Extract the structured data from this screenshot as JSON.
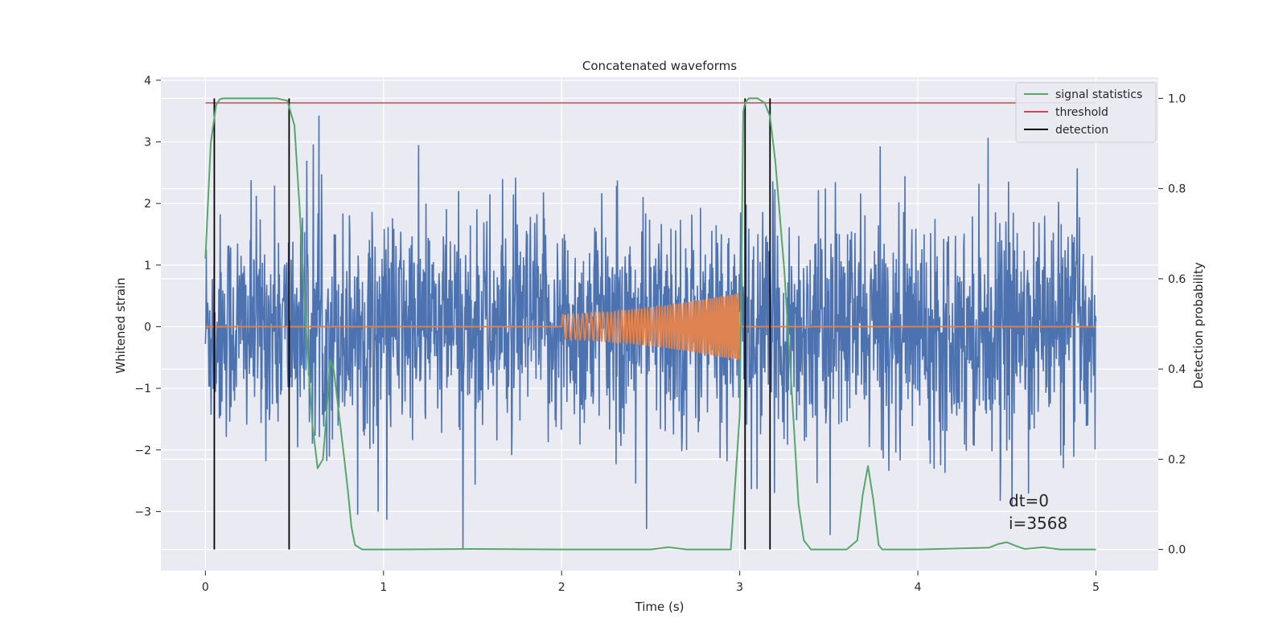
{
  "chart_data": {
    "type": "line",
    "title": "Concatenated waveforms",
    "xlabel": "Time (s)",
    "ylabel": "Whitened strain",
    "y2label": "Detection probability",
    "xlim": [
      -0.25,
      5.35
    ],
    "ylim": [
      -3.96,
      4.05
    ],
    "y2lim": [
      -0.047,
      1.047
    ],
    "xticks": [
      0,
      1,
      2,
      3,
      4,
      5
    ],
    "yticks": [
      -3,
      -2,
      -1,
      0,
      1,
      2,
      3,
      4
    ],
    "y2ticks": [
      0.0,
      0.2,
      0.4,
      0.6,
      0.8,
      1.0
    ],
    "ytick_labels": [
      "−3",
      "−2",
      "−1",
      "0",
      "1",
      "2",
      "3",
      "4"
    ],
    "y2tick_labels": [
      "0.0",
      "0.2",
      "0.4",
      "0.6",
      "0.8",
      "1.0"
    ],
    "grid": true,
    "legend_position": "top-right",
    "colors": {
      "noise": "#4c72b0",
      "injection": "#dd8452",
      "signal_statistics": "#55a868",
      "threshold": "#c44e52",
      "detection": "#000000",
      "background": "#eaeaf2",
      "grid": "#ffffff"
    },
    "series": [
      {
        "name": "signal statistics",
        "axis": "right",
        "x": [
          0,
          0.03,
          0.06,
          0.08,
          0.1,
          0.2,
          0.3,
          0.4,
          0.46,
          0.5,
          0.53,
          0.56,
          0.6,
          0.63,
          0.66,
          0.68,
          0.7,
          0.72,
          0.75,
          0.78,
          0.8,
          0.82,
          0.84,
          0.88,
          1.0,
          1.5,
          2.0,
          2.5,
          2.6,
          2.7,
          2.8,
          2.95,
          3.0,
          3.02,
          3.03,
          3.05,
          3.1,
          3.14,
          3.17,
          3.2,
          3.25,
          3.3,
          3.33,
          3.36,
          3.4,
          3.5,
          3.6,
          3.66,
          3.69,
          3.72,
          3.75,
          3.78,
          3.8,
          3.9,
          4.0,
          4.4,
          4.45,
          4.5,
          4.55,
          4.6,
          4.7,
          4.8,
          5.0
        ],
        "y": [
          0.645,
          0.9,
          0.985,
          0.998,
          1.0,
          1.0,
          1.0,
          1.0,
          0.995,
          0.94,
          0.75,
          0.52,
          0.28,
          0.18,
          0.2,
          0.3,
          0.42,
          0.4,
          0.3,
          0.2,
          0.13,
          0.05,
          0.01,
          0.0,
          0.0,
          0.001,
          0.0,
          0.0,
          0.005,
          0.0,
          0.0,
          0.0,
          0.3,
          0.97,
          0.99,
          1.0,
          1.0,
          0.99,
          0.96,
          0.86,
          0.62,
          0.3,
          0.1,
          0.02,
          0.0,
          0.0,
          0.0,
          0.02,
          0.12,
          0.185,
          0.11,
          0.01,
          0.0,
          0.0,
          0.0,
          0.004,
          0.012,
          0.016,
          0.008,
          0.001,
          0.005,
          0.0,
          0.0
        ]
      },
      {
        "name": "threshold",
        "axis": "right",
        "x": [
          0,
          5
        ],
        "y": [
          0.99,
          0.99
        ]
      },
      {
        "name": "detection",
        "axis": "right",
        "vlines": [
          0.05,
          0.47,
          3.03,
          3.17
        ],
        "ymin": 0.0,
        "ymax": 1.0
      }
    ],
    "noise_series": {
      "axis": "left",
      "x_range": [
        0,
        5
      ],
      "samples": 2048,
      "spread": 0.9,
      "peak_range": [
        -3.6,
        3.6
      ]
    },
    "injection_series": {
      "axis": "left",
      "x_range": [
        2.0,
        3.0
      ],
      "amplitude_start": 0.2,
      "amplitude_end": 0.55,
      "cycles": 60
    },
    "annotations": [
      "dt=0",
      "i=3568"
    ]
  }
}
